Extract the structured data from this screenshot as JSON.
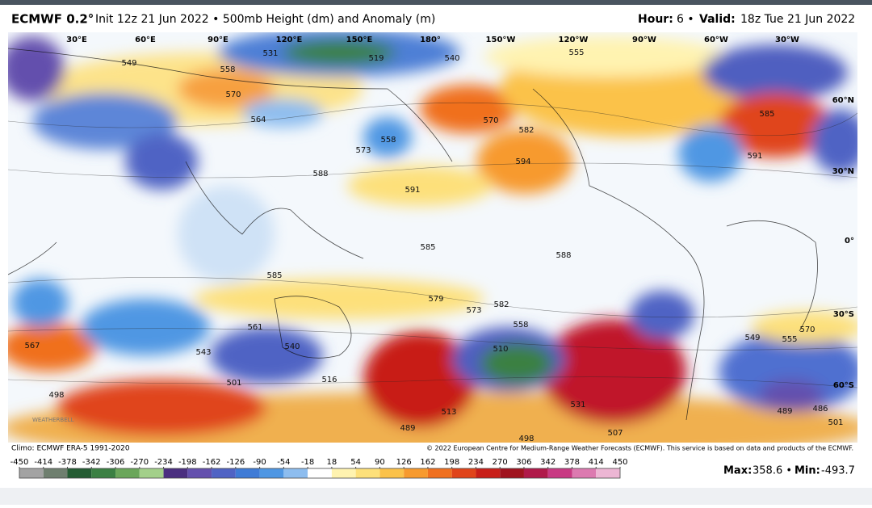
{
  "header": {
    "model": "ECMWF 0.2°",
    "subtitle": "Init 12z 21 Jun 2022 • 500mb Height (dm) and Anomaly (m)",
    "hour_label": "Hour:",
    "hour": "6 •",
    "valid_label": "Valid:",
    "valid": "18z Tue 21 Jun 2022"
  },
  "map": {
    "lon_labels": [
      "30°E",
      "60°E",
      "90°E",
      "120°E",
      "150°E",
      "180°",
      "150°W",
      "120°W",
      "90°W",
      "60°W",
      "30°W"
    ],
    "lat_labels": [
      "60°N",
      "30°N",
      "0°",
      "30°S",
      "60°S"
    ],
    "contour_labels": [
      "549",
      "558",
      "570",
      "564",
      "558",
      "591",
      "594",
      "582",
      "570",
      "555",
      "585",
      "591",
      "588",
      "585",
      "585",
      "588",
      "579",
      "573",
      "582",
      "558",
      "510",
      "531",
      "513",
      "567",
      "498",
      "501",
      "516",
      "543",
      "540",
      "561",
      "570",
      "555",
      "549",
      "489",
      "486",
      "501",
      "507",
      "498",
      "489",
      "531",
      "519",
      "540",
      "573"
    ],
    "watermark": "WEATHERBELL"
  },
  "footer": {
    "climo": "Climo: ECMWF ERA-5 1991-2020",
    "copyright": "© 2022 European Centre for Medium-Range Weather Forecasts (ECMWF). This service is based on data and products of the ECMWF.",
    "max_label": "Max:",
    "max": "358.6 •",
    "min_label": "Min:",
    "min": "-493.7"
  },
  "colorbar": {
    "ticks": [
      -450,
      -414,
      -378,
      -342,
      -306,
      -270,
      -234,
      -198,
      -162,
      -126,
      -90,
      -54,
      -18,
      18,
      54,
      90,
      126,
      162,
      198,
      234,
      270,
      306,
      342,
      378,
      414,
      450
    ],
    "colors": [
      "#a3a3a3",
      "#6f7f6f",
      "#245c33",
      "#3b8043",
      "#6aa65a",
      "#a3d08a",
      "#4b2f80",
      "#6450ad",
      "#5063c4",
      "#3f7bd6",
      "#4f97e3",
      "#8dbdef",
      "#ffffff",
      "#fff3b0",
      "#fde07a",
      "#fbc24a",
      "#f79a2e",
      "#f0701f",
      "#e0441a",
      "#c81e18",
      "#a0141f",
      "#b01a4a",
      "#c83a83",
      "#dc7ab0",
      "#edb6d4"
    ]
  }
}
